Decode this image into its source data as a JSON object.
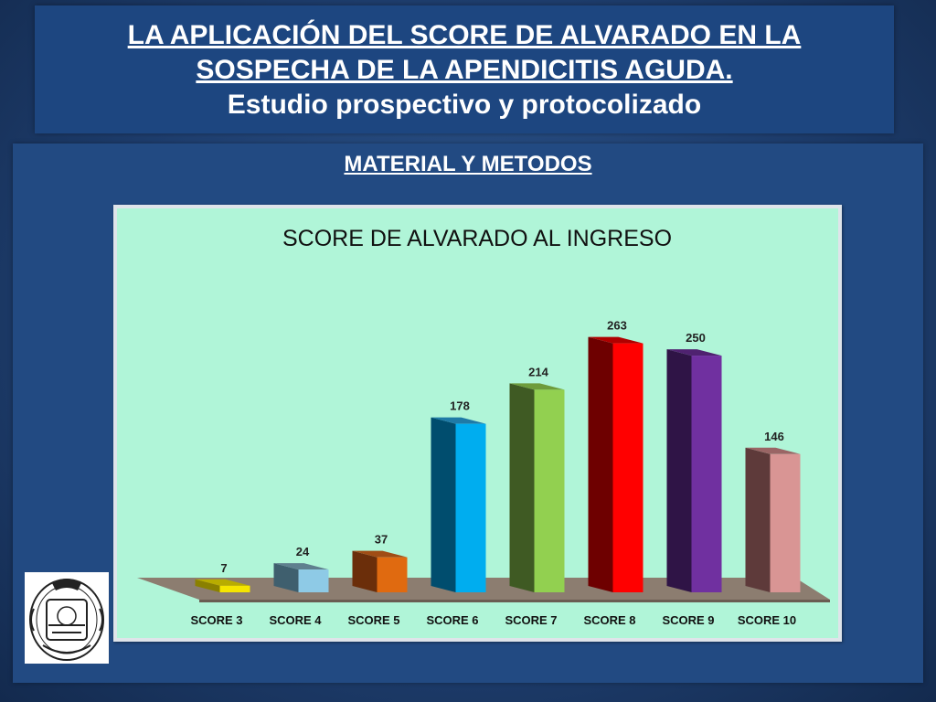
{
  "header": {
    "line1": "LA APLICACIÓN DEL SCORE DE ALVARADO EN LA",
    "line2": "SOSPECHA DE LA APENDICITIS AGUDA.",
    "line3": "Estudio prospectivo y protocolizado"
  },
  "section_title": "MATERIAL Y METODOS",
  "chart_data": {
    "type": "bar",
    "title": "SCORE DE ALVARADO AL INGRESO",
    "categories": [
      "SCORE 3",
      "SCORE 4",
      "SCORE 5",
      "SCORE 6",
      "SCORE 7",
      "SCORE 8",
      "SCORE 9",
      "SCORE 10"
    ],
    "values": [
      7,
      24,
      37,
      178,
      214,
      263,
      250,
      146
    ],
    "ylim": [
      0,
      280
    ],
    "grid": false,
    "legend": "none",
    "three_d": true,
    "colors": {
      "front": [
        "#f5e500",
        "#8ecae6",
        "#e06a10",
        "#00adef",
        "#92d050",
        "#ff0000",
        "#7030a0",
        "#d99594"
      ],
      "side": [
        "#8a8000",
        "#3f5f6e",
        "#6b2e0a",
        "#004d6e",
        "#3f5a23",
        "#6e0000",
        "#2f1446",
        "#5e3a3a"
      ],
      "top": [
        "#b8ac00",
        "#5f7f8e",
        "#a04d15",
        "#1f7aa6",
        "#6e9b3b",
        "#b00000",
        "#4f2270",
        "#9a6565"
      ]
    }
  },
  "colors": {
    "background": "#1f3f70",
    "header_bg": "#1d4680",
    "chart_bg": "#b0f5d8",
    "floor": "#8c7d70"
  }
}
